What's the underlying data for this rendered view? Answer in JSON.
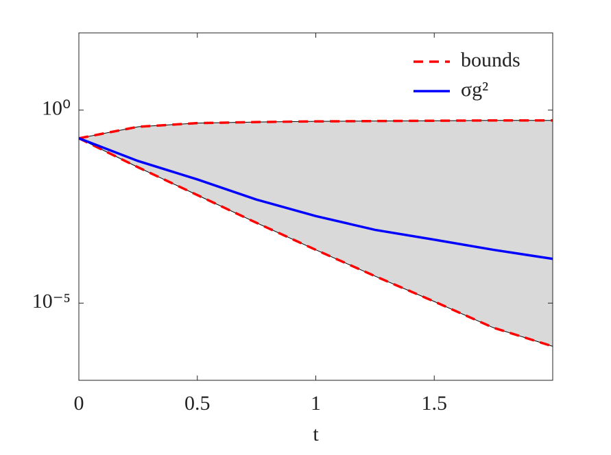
{
  "chart_data": {
    "type": "band-line",
    "x": [
      0,
      0.25,
      0.5,
      0.75,
      1,
      1.25,
      1.5,
      1.75,
      2
    ],
    "band": {
      "name": "bounds",
      "color": "#ff0000",
      "fill": "#d9d9d9",
      "upper": [
        0.186,
        0.37,
        0.46,
        0.49,
        0.51,
        0.52,
        0.53,
        0.54,
        0.54
      ],
      "lower": [
        0.186,
        0.033,
        0.0063,
        0.0012,
        0.00024,
        5e-05,
        1.1e-05,
        2.3e-06,
        7.6e-07
      ]
    },
    "series": [
      {
        "name": "σg²",
        "color": "#0000ff",
        "values": [
          0.186,
          0.048,
          0.016,
          0.0048,
          0.0018,
          0.00079,
          0.00044,
          0.00024,
          0.00014
        ]
      }
    ],
    "xlabel": "t",
    "xlim": [
      0,
      2
    ],
    "xticks": [
      0,
      0.5,
      1,
      1.5
    ],
    "ylim": [
      1e-07,
      100
    ],
    "yscale": "log",
    "yticks": [
      {
        "value": 1,
        "label": "10⁰"
      },
      {
        "value": 1e-05,
        "label": "10⁻⁵"
      }
    ],
    "legend": "upper right"
  }
}
